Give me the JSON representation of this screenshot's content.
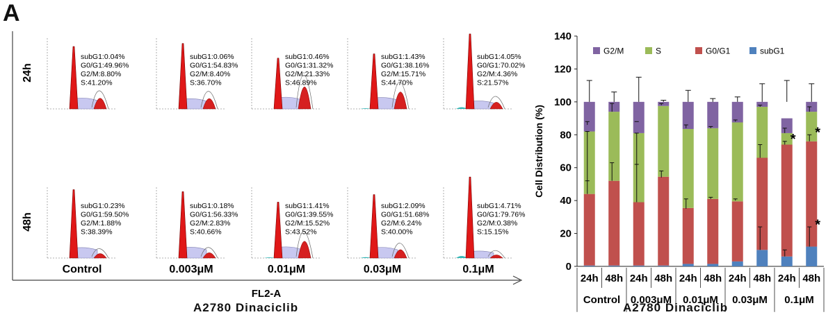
{
  "panel_label": "A",
  "chart_data": [
    {
      "type": "histogram_grid",
      "row_labels": [
        "24h",
        "48h"
      ],
      "column_labels": [
        "Control",
        "0.003μM",
        "0.01μM",
        "0.03μM",
        "0.1μM"
      ],
      "xlabel": "FL2-A",
      "caption": "A2780   Dinaciclib",
      "panels": [
        [
          [
            "subG1:0.04%",
            "G0/G1:49.96%",
            "G2/M:8.80%",
            "S:41.20%"
          ],
          [
            "subG1:0.06%",
            "G0/G1:54.83%",
            "G2/M:8.40%",
            "S:36.70%"
          ],
          [
            "subG1:0.46%",
            "G0/G1:31.32%",
            "G2/M:21.33%",
            "S:46.89%"
          ],
          [
            "subG1:1.43%",
            "G0/G1:38.16%",
            "G2/M:15.71%",
            "S:44.70%"
          ],
          [
            "subG1:4.05%",
            "G0/G1:70.02%",
            "G2/M:4.36%",
            "S:21.57%"
          ]
        ],
        [
          [
            "subG1:0.23%",
            "G0/G1:59.50%",
            "G2/M:1.88%",
            "S:38.39%"
          ],
          [
            "subG1:0.18%",
            "G0/G1:56.33%",
            "G2/M:2.83%",
            "S:40.66%"
          ],
          [
            "subG1:1.41%",
            "G0/G1:39.55%",
            "G2/M:15.52%",
            "S:43.52%"
          ],
          [
            "subG1:2.09%",
            "G0/G1:51.68%",
            "G2/M:6.24%",
            "S:40.00%"
          ],
          [
            "subG1:4.71%",
            "G0/G1:79.76%",
            "G2/M:0.38%",
            "S:15.15%"
          ]
        ]
      ]
    },
    {
      "type": "bar",
      "stacked": true,
      "categories": [
        "24h",
        "48h",
        "24h",
        "48h",
        "24h",
        "48h",
        "24h",
        "48h",
        "24h",
        "48h"
      ],
      "groups": [
        "Control",
        "0.003μM",
        "0.01μM",
        "0.03μM",
        "0.1μM"
      ],
      "ylabel": "Cell Distribution (%)",
      "ylim": [
        0,
        140
      ],
      "yticks": [
        0,
        20,
        40,
        60,
        80,
        100,
        120,
        140
      ],
      "legend_position": "top",
      "caption": "A2780   Dinaciclib",
      "series": [
        {
          "name": "subG1",
          "color": "#4F81BD",
          "values": [
            0.5,
            0.5,
            0.5,
            0.5,
            1.5,
            1.5,
            3,
            10,
            6,
            12
          ]
        },
        {
          "name": "G0/G1",
          "color": "#C0504D",
          "values": [
            43.5,
            51.5,
            38.5,
            54,
            34,
            39.5,
            36.5,
            56,
            68,
            64
          ]
        },
        {
          "name": "S",
          "color": "#9BBB59",
          "values": [
            38,
            42,
            42,
            43,
            48,
            43,
            48,
            31,
            7,
            18
          ]
        },
        {
          "name": "G2/M",
          "color": "#8064A2",
          "values": [
            18,
            6,
            19,
            2.5,
            16.5,
            16,
            12.5,
            3,
            9,
            6
          ]
        }
      ],
      "error_bars_top": [
        113,
        106,
        115,
        101,
        107,
        102,
        103,
        111,
        113,
        111
      ],
      "error_bars_inner": [
        [
          [
            86,
            88
          ],
          [
            82,
            52
          ],
          [
            44,
            52
          ]
        ],
        [
          [
            94,
            99
          ],
          [
            52,
            63
          ]
        ],
        [
          [
            88,
            88
          ],
          [
            81,
            62
          ],
          [
            39,
            62
          ]
        ],
        [
          [
            98,
            99
          ],
          [
            54,
            58
          ]
        ],
        [
          [
            84,
            86
          ],
          [
            35,
            41
          ]
        ],
        [
          [
            84,
            85
          ],
          [
            41,
            42
          ]
        ],
        [
          [
            88,
            89
          ],
          [
            40,
            41
          ]
        ],
        [
          [
            97,
            98
          ],
          [
            66,
            74
          ],
          [
            10,
            24
          ]
        ],
        [
          [
            81,
            84
          ],
          [
            74,
            76
          ],
          [
            6,
            10
          ]
        ],
        [
          [
            94,
            97
          ],
          [
            76,
            80
          ],
          [
            12,
            24
          ]
        ]
      ],
      "significance_markers": [
        {
          "index": 8,
          "value": 78,
          "label": "*"
        },
        {
          "index": 9,
          "value": 82,
          "label": "*"
        },
        {
          "index": 9,
          "value": 26,
          "label": "*"
        }
      ]
    }
  ]
}
